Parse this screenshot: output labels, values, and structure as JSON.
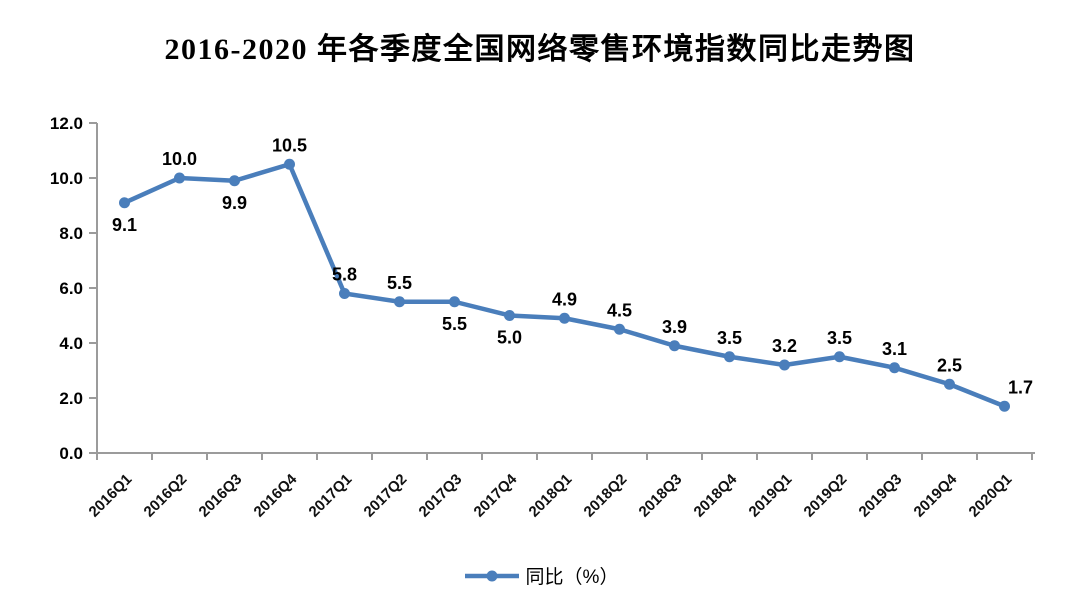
{
  "chart_data": {
    "type": "line",
    "title": "2016-2020 年各季度全国网络零售环境指数同比走势图",
    "legend": "同比（%）",
    "legend_position": "bottom",
    "grid": "off",
    "categories": [
      "2016Q1",
      "2016Q2",
      "2016Q3",
      "2016Q4",
      "2017Q1",
      "2017Q2",
      "2017Q3",
      "2017Q4",
      "2018Q1",
      "2018Q2",
      "2018Q3",
      "2018Q4",
      "2019Q1",
      "2019Q2",
      "2019Q3",
      "2019Q4",
      "2020Q1"
    ],
    "series": [
      {
        "name": "同比（%）",
        "values": [
          9.1,
          10.0,
          9.9,
          10.5,
          5.8,
          5.5,
          5.5,
          5.0,
          4.9,
          4.5,
          3.9,
          3.5,
          3.2,
          3.5,
          3.1,
          2.5,
          1.7
        ]
      }
    ],
    "label_positions": [
      "below",
      "above",
      "below",
      "above",
      "above",
      "above",
      "below",
      "below",
      "above",
      "above",
      "above",
      "above",
      "above",
      "above",
      "above",
      "above",
      "above-right"
    ],
    "ylim": [
      0,
      12
    ],
    "ytick_step": 2,
    "ytick_labels": [
      "0.0",
      "2.0",
      "4.0",
      "6.0",
      "8.0",
      "10.0",
      "12.0"
    ],
    "xlabel": "",
    "ylabel": "",
    "line_color": "#4a7ebb",
    "axis_color": "#9b9b9b",
    "data_label_color": "#000000",
    "background_color": "#ffffff"
  }
}
